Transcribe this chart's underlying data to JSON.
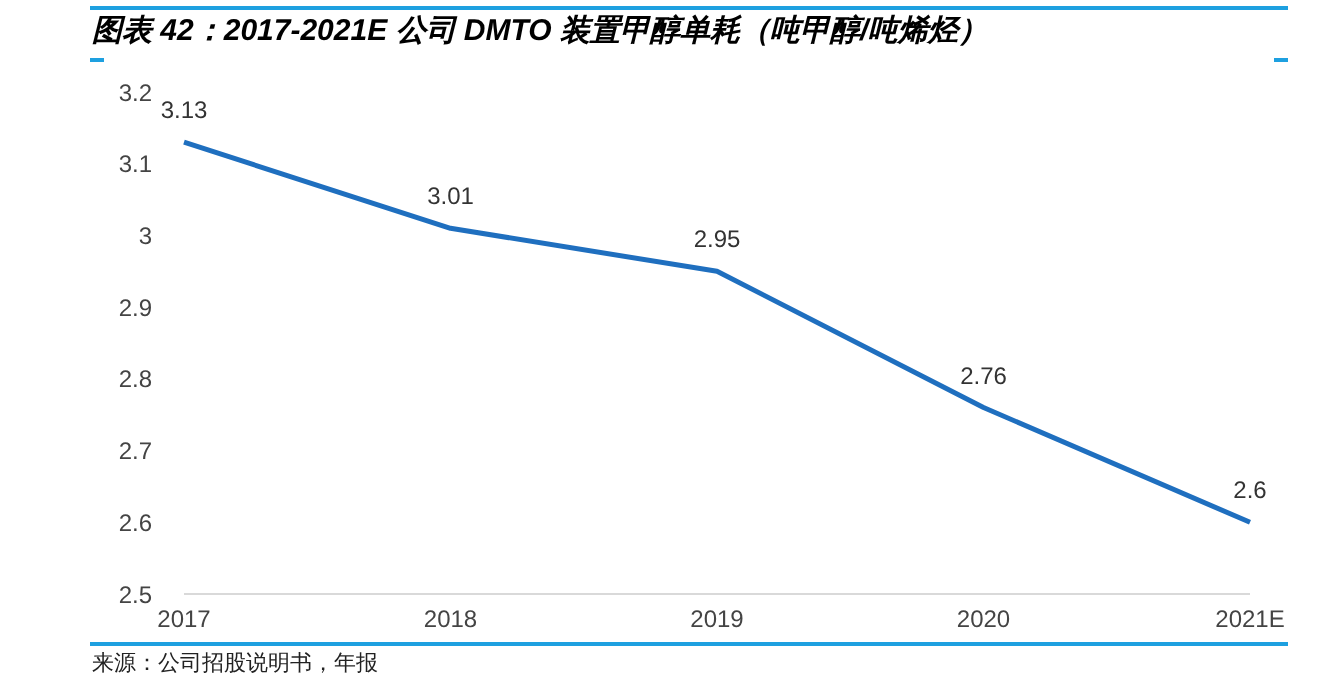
{
  "chart_data": {
    "type": "line",
    "title": "图表 42：2017-2021E 公司 DMTO 装置甲醇单耗（吨甲醇/吨烯烃）",
    "categories": [
      "2017",
      "2018",
      "2019",
      "2020",
      "2021E"
    ],
    "values": [
      3.13,
      3.01,
      2.95,
      2.76,
      2.6
    ],
    "color": "#1f6fbf",
    "ylim": [
      2.5,
      3.2
    ],
    "yticks": [
      2.5,
      2.6,
      2.7,
      2.8,
      2.9,
      3,
      3.1,
      3.2
    ],
    "data_labels": true,
    "grid": false,
    "marker": "none",
    "annotations": [
      "来源：公司招股说明书，年报"
    ]
  }
}
